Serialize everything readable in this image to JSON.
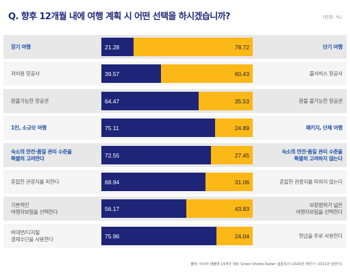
{
  "title": "Q. 향후 12개월 내에 여행 계획 시 어떤 선택을 하시겠습니까?",
  "unit": "(단위: %)",
  "source": "출처: 아시아 태평양 14개국 대상 'Green Shoots Radar' 설문조사 (2020년 하반기~2021년 상반기)",
  "colors": {
    "left_bar": "#1e2578",
    "right_bar": "#fbb817",
    "row_bg_a": "#e8e8e8",
    "row_bg_b": "#f5f5f5",
    "highlight_text": "#1a4faa"
  },
  "chart_data": {
    "type": "bar",
    "orientation": "horizontal-stacked-100",
    "xlim": [
      0,
      100
    ],
    "rows": [
      {
        "left_label": "장기 여행",
        "right_label": "단기 여행",
        "left_value": 21.28,
        "right_value": 78.72,
        "highlight": true
      },
      {
        "left_label": "저비용 항공사",
        "right_label": "풀서비스 항공사",
        "left_value": 39.57,
        "right_value": 60.43,
        "highlight": false
      },
      {
        "left_label": "환불가능한 항공권",
        "right_label": "환불 불가능한 항공권",
        "left_value": 64.47,
        "right_value": 35.53,
        "highlight": false
      },
      {
        "left_label": "1인, 소규모 여행",
        "right_label": "패키지, 단체 여행",
        "left_value": 75.11,
        "right_value": 24.89,
        "highlight": true
      },
      {
        "left_label": "숙소의 안전·품질 관리 수준을\n특별히 고려한다",
        "right_label": "숙소의 안전·품질 관리 수준을\n특별히 고려하지 않는다",
        "left_value": 72.55,
        "right_value": 27.45,
        "highlight": true
      },
      {
        "left_label": "혼잡한 관광지를 피한다",
        "right_label": "혼잡한 관광지를 피하지 않는다",
        "left_value": 68.94,
        "right_value": 31.06,
        "highlight": false
      },
      {
        "left_label": "기본적인\n여행자보험을 선택한다",
        "right_label": "보장범위가 넓은\n여행자보험을 선택한다",
        "left_value": 56.17,
        "right_value": 43.83,
        "highlight": false
      },
      {
        "left_label": "비대면/디지털\n결제수단을 사용한다",
        "right_label": "현금을 주로 사용한다",
        "left_value": 75.96,
        "right_value": 24.04,
        "highlight": false
      }
    ]
  }
}
